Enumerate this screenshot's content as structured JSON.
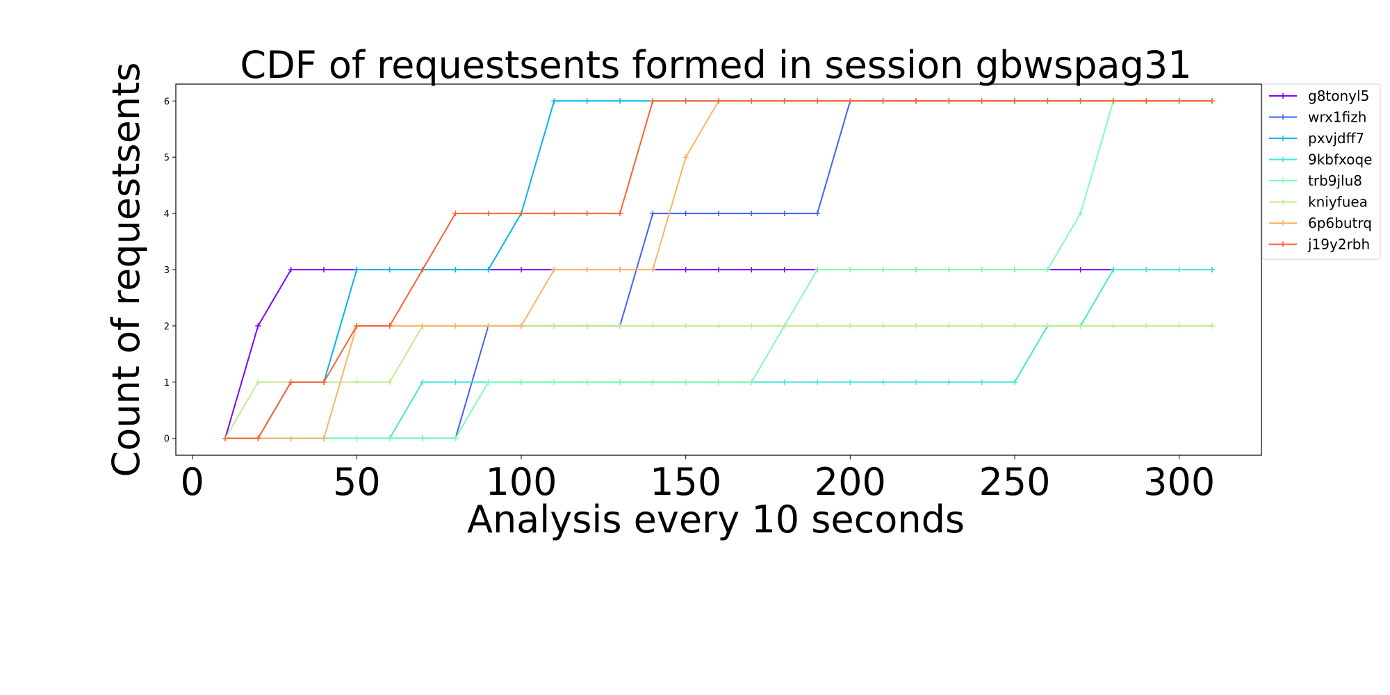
{
  "chart_data": {
    "type": "line",
    "title": "CDF of requestsents formed in session gbwspag31",
    "xlabel": "Analysis every 10 seconds",
    "ylabel": "Count of requestsents",
    "xlim": [
      -5,
      325
    ],
    "ylim": [
      -0.3,
      6.3
    ],
    "xticks": [
      0,
      50,
      100,
      150,
      200,
      250,
      300
    ],
    "yticks": [
      0,
      1,
      2,
      3,
      4,
      5,
      6
    ],
    "grid": false,
    "legend_position": "outside-top-right",
    "x": [
      10,
      20,
      30,
      40,
      50,
      60,
      70,
      80,
      90,
      100,
      110,
      120,
      130,
      140,
      150,
      160,
      170,
      180,
      190,
      200,
      210,
      220,
      230,
      240,
      250,
      260,
      270,
      280,
      290,
      300,
      310
    ],
    "series": [
      {
        "name": "g8tonyl5",
        "color": "#7f00ff",
        "values": [
          0,
          2,
          3,
          3,
          3,
          3,
          3,
          3,
          3,
          3,
          3,
          3,
          3,
          3,
          3,
          3,
          3,
          3,
          3,
          3,
          3,
          3,
          3,
          3,
          3,
          3,
          3,
          3,
          3,
          3,
          3
        ]
      },
      {
        "name": "wrx1fizh",
        "color": "#3f61fa",
        "values": [
          0,
          0,
          0,
          0,
          0,
          0,
          0,
          0,
          2,
          2,
          2,
          2,
          2,
          4,
          4,
          4,
          4,
          4,
          4,
          6,
          6,
          6,
          6,
          6,
          6,
          6,
          6,
          6,
          6,
          6,
          6
        ]
      },
      {
        "name": "pxvjdff7",
        "color": "#00b5eb",
        "values": [
          0,
          0,
          1,
          1,
          3,
          3,
          3,
          3,
          3,
          4,
          6,
          6,
          6,
          6,
          6,
          6,
          6,
          6,
          6,
          6,
          6,
          6,
          6,
          6,
          6,
          6,
          6,
          6,
          6,
          6,
          6
        ]
      },
      {
        "name": "9kbfxoqe",
        "color": "#3fe8d4",
        "values": [
          0,
          0,
          0,
          0,
          0,
          0,
          1,
          1,
          1,
          1,
          1,
          1,
          1,
          1,
          1,
          1,
          1,
          1,
          1,
          1,
          1,
          1,
          1,
          1,
          1,
          2,
          2,
          3,
          3,
          3,
          3
        ]
      },
      {
        "name": "trb9jlu8",
        "color": "#7ffeb4",
        "values": [
          0,
          0,
          0,
          0,
          0,
          0,
          0,
          0,
          1,
          1,
          1,
          1,
          1,
          1,
          1,
          1,
          1,
          2,
          3,
          3,
          3,
          3,
          3,
          3,
          3,
          3,
          4,
          6,
          6,
          6,
          6
        ]
      },
      {
        "name": "kniyfuea",
        "color": "#c0eb8d",
        "values": [
          0,
          1,
          1,
          1,
          1,
          1,
          2,
          2,
          2,
          2,
          2,
          2,
          2,
          2,
          2,
          2,
          2,
          2,
          2,
          2,
          2,
          2,
          2,
          2,
          2,
          2,
          2,
          2,
          2,
          2,
          2
        ]
      },
      {
        "name": "6p6butrq",
        "color": "#ffb360",
        "values": [
          0,
          0,
          0,
          0,
          2,
          2,
          2,
          2,
          2,
          2,
          3,
          3,
          3,
          3,
          5,
          6,
          6,
          6,
          6,
          6,
          6,
          6,
          6,
          6,
          6,
          6,
          6,
          6,
          6,
          6,
          6
        ]
      },
      {
        "name": "j19y2rbh",
        "color": "#ff6030",
        "values": [
          0,
          0,
          1,
          1,
          2,
          2,
          3,
          4,
          4,
          4,
          4,
          4,
          4,
          6,
          6,
          6,
          6,
          6,
          6,
          6,
          6,
          6,
          6,
          6,
          6,
          6,
          6,
          6,
          6,
          6,
          6
        ]
      }
    ]
  }
}
